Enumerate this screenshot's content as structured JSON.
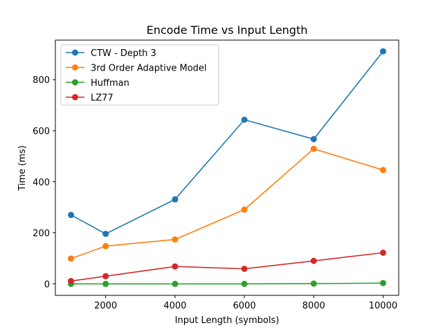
{
  "chart_data": {
    "type": "line",
    "title": "Encode Time vs Input Length",
    "xlabel": "Input Length (symbols)",
    "ylabel": "Time (ms)",
    "x": [
      1000,
      2000,
      4000,
      6000,
      8000,
      10000
    ],
    "xticks": [
      2000,
      4000,
      6000,
      8000,
      10000
    ],
    "yticks": [
      0,
      200,
      400,
      600,
      800
    ],
    "xlim": [
      550,
      10450
    ],
    "ylim": [
      -45,
      955
    ],
    "grid": false,
    "legend_position": "top-left",
    "series": [
      {
        "name": "CTW - Depth 3",
        "color": "#1f77b4",
        "values": [
          270,
          196,
          331,
          643,
          567,
          911
        ]
      },
      {
        "name": "3rd Order Adaptive Model",
        "color": "#ff7f0e",
        "values": [
          99,
          148,
          174,
          291,
          529,
          446
        ]
      },
      {
        "name": "Huffman",
        "color": "#2ca02c",
        "values": [
          0,
          0,
          0,
          0,
          1,
          3
        ]
      },
      {
        "name": "LZ77",
        "color": "#d62728",
        "values": [
          11,
          30,
          68,
          59,
          90,
          122
        ]
      }
    ]
  }
}
